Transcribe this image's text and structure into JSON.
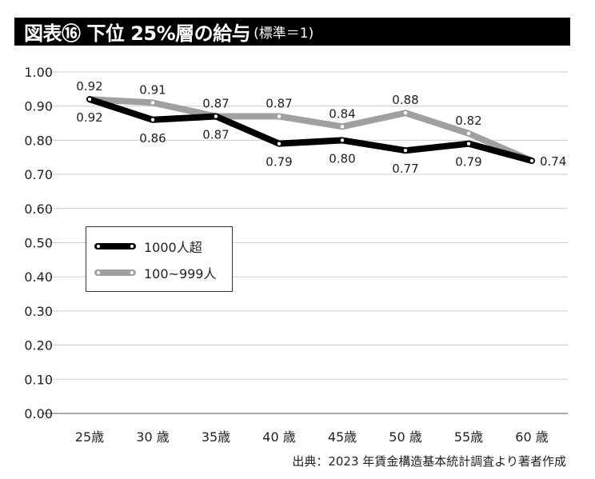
{
  "title": {
    "main": "図表⑯ 下位 25%層の給与",
    "sub": "(標準＝1)"
  },
  "source": "出典：2023 年賃金構造基本統計調査より著者作成",
  "chart_data": {
    "type": "line",
    "categories": [
      "25歳",
      "30 歳",
      "35歳",
      "40 歳",
      "45歳",
      "50 歳",
      "55歳",
      "60 歳"
    ],
    "ylim": [
      0,
      1
    ],
    "yticks": [
      "0.00",
      "0.10",
      "0.20",
      "0.30",
      "0.40",
      "0.50",
      "0.60",
      "0.70",
      "0.80",
      "0.90",
      "1.00"
    ],
    "grid": true,
    "legend_position": "center-left",
    "series": [
      {
        "name": "1000人超",
        "color": "#000000",
        "values": [
          0.92,
          0.86,
          0.87,
          0.79,
          0.8,
          0.77,
          0.79,
          0.74
        ],
        "labels": [
          "0.92",
          "0.86",
          "0.87",
          "0.79",
          "0.80",
          "0.77",
          "0.79",
          "0.74"
        ]
      },
      {
        "name": "100~999人",
        "color": "#a0a0a0",
        "values": [
          0.92,
          0.91,
          0.87,
          0.87,
          0.84,
          0.88,
          0.82,
          0.74
        ],
        "labels": [
          "0.92",
          "0.91",
          "0.87",
          "0.87",
          "0.84",
          "0.88",
          "0.82",
          ""
        ]
      }
    ]
  }
}
